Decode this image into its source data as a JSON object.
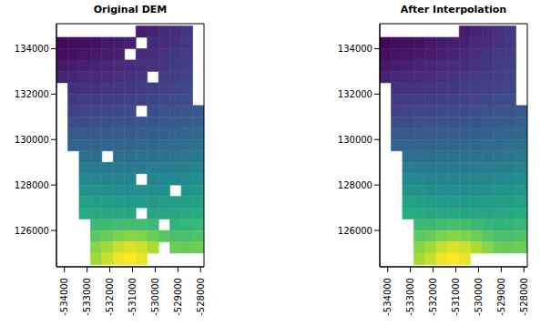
{
  "chart_data": [
    {
      "type": "heatmap",
      "title": "Original DEM",
      "x": [
        -534100,
        -533600,
        -533100,
        -532600,
        -532100,
        -531600,
        -531100,
        -530600,
        -530100,
        -529600,
        -529100,
        -528600,
        -528100
      ],
      "y": [
        134750,
        134250,
        133750,
        133250,
        132750,
        132250,
        131750,
        131250,
        130750,
        130250,
        129750,
        129250,
        128750,
        128250,
        127750,
        127250,
        126750,
        126250,
        125750,
        125250,
        124750
      ],
      "z": [
        [
          null,
          null,
          null,
          null,
          null,
          null,
          null,
          0.08,
          0.1,
          0.12,
          0.14,
          0.16,
          null
        ],
        [
          0.02,
          0.03,
          0.04,
          0.05,
          0.07,
          0.08,
          0.09,
          null,
          0.12,
          0.13,
          0.15,
          0.17,
          null
        ],
        [
          0.04,
          0.05,
          0.06,
          0.07,
          0.08,
          0.09,
          null,
          0.12,
          0.13,
          0.15,
          0.17,
          0.18,
          null
        ],
        [
          0.07,
          0.08,
          0.09,
          0.1,
          0.11,
          0.12,
          0.13,
          0.14,
          0.15,
          0.16,
          0.18,
          0.19,
          null
        ],
        [
          0.1,
          0.11,
          0.12,
          0.12,
          0.13,
          0.14,
          0.15,
          0.16,
          null,
          0.18,
          0.19,
          0.2,
          null
        ],
        [
          null,
          0.14,
          0.15,
          0.15,
          0.16,
          0.17,
          0.17,
          0.18,
          0.19,
          0.2,
          0.21,
          0.22,
          null
        ],
        [
          null,
          0.17,
          0.18,
          0.18,
          0.19,
          0.19,
          0.2,
          0.2,
          0.21,
          0.22,
          0.23,
          0.24,
          null
        ],
        [
          null,
          0.2,
          0.21,
          0.21,
          0.22,
          0.22,
          0.23,
          null,
          0.24,
          0.25,
          0.26,
          0.27,
          0.28
        ],
        [
          null,
          0.24,
          0.24,
          0.25,
          0.25,
          0.26,
          0.26,
          0.27,
          0.27,
          0.28,
          0.29,
          0.3,
          0.31
        ],
        [
          null,
          0.28,
          0.28,
          0.29,
          0.29,
          0.29,
          0.3,
          0.3,
          0.31,
          0.31,
          0.32,
          0.33,
          0.34
        ],
        [
          null,
          0.32,
          0.32,
          0.32,
          0.33,
          0.33,
          0.33,
          0.34,
          0.34,
          0.35,
          0.35,
          0.36,
          0.37
        ],
        [
          null,
          null,
          0.37,
          0.36,
          null,
          0.37,
          0.37,
          0.38,
          0.38,
          0.38,
          0.39,
          0.4,
          0.41
        ],
        [
          null,
          null,
          0.42,
          0.41,
          0.41,
          0.41,
          0.41,
          0.41,
          0.42,
          0.42,
          0.43,
          0.44,
          0.45
        ],
        [
          null,
          null,
          0.47,
          0.46,
          0.45,
          0.45,
          0.45,
          null,
          0.46,
          0.46,
          0.47,
          0.48,
          0.49
        ],
        [
          null,
          null,
          0.52,
          0.51,
          0.5,
          0.49,
          0.49,
          0.49,
          0.5,
          0.5,
          null,
          0.52,
          0.53
        ],
        [
          null,
          null,
          0.57,
          0.56,
          0.55,
          0.54,
          0.54,
          0.54,
          0.54,
          0.55,
          0.56,
          0.56,
          0.57
        ],
        [
          null,
          null,
          0.62,
          0.61,
          0.6,
          0.6,
          0.6,
          null,
          0.59,
          0.59,
          0.6,
          0.61,
          0.62
        ],
        [
          null,
          null,
          null,
          0.68,
          0.68,
          0.69,
          0.7,
          0.69,
          0.68,
          null,
          0.65,
          0.66,
          0.67
        ],
        [
          null,
          null,
          null,
          0.75,
          0.77,
          0.8,
          0.82,
          0.81,
          0.78,
          0.74,
          0.71,
          0.71,
          0.72
        ],
        [
          null,
          null,
          null,
          0.82,
          0.86,
          0.92,
          0.95,
          0.93,
          0.88,
          null,
          0.78,
          0.77,
          0.78
        ],
        [
          null,
          null,
          null,
          0.86,
          0.92,
          0.98,
          1.0,
          0.97,
          null,
          null,
          null,
          null,
          null
        ]
      ],
      "zlim": [
        0,
        1
      ],
      "xlim": [
        -534350,
        -527850
      ],
      "ylim": [
        124400,
        135100
      ],
      "xticks": [
        -534000,
        -533000,
        -532000,
        -531000,
        -530000,
        -529000,
        -528000
      ],
      "yticks": [
        126000,
        128000,
        130000,
        132000,
        134000
      ]
    },
    {
      "type": "heatmap",
      "title": "After Interpolation",
      "x": [
        -534100,
        -533600,
        -533100,
        -532600,
        -532100,
        -531600,
        -531100,
        -530600,
        -530100,
        -529600,
        -529100,
        -528600,
        -528100
      ],
      "y": [
        134750,
        134250,
        133750,
        133250,
        132750,
        132250,
        131750,
        131250,
        130750,
        130250,
        129750,
        129250,
        128750,
        128250,
        127750,
        127250,
        126750,
        126250,
        125750,
        125250,
        124750
      ],
      "z": [
        [
          null,
          null,
          null,
          null,
          null,
          null,
          null,
          0.08,
          0.1,
          0.12,
          0.14,
          0.16,
          null
        ],
        [
          0.02,
          0.03,
          0.04,
          0.05,
          0.07,
          0.08,
          0.09,
          0.1,
          0.12,
          0.13,
          0.15,
          0.17,
          null
        ],
        [
          0.04,
          0.05,
          0.06,
          0.07,
          0.08,
          0.09,
          0.1,
          0.12,
          0.13,
          0.15,
          0.17,
          0.18,
          null
        ],
        [
          0.07,
          0.08,
          0.09,
          0.1,
          0.11,
          0.12,
          0.13,
          0.14,
          0.15,
          0.16,
          0.18,
          0.19,
          null
        ],
        [
          0.1,
          0.11,
          0.12,
          0.12,
          0.13,
          0.14,
          0.15,
          0.16,
          0.17,
          0.18,
          0.19,
          0.2,
          null
        ],
        [
          null,
          0.14,
          0.15,
          0.15,
          0.16,
          0.17,
          0.17,
          0.18,
          0.19,
          0.2,
          0.21,
          0.22,
          null
        ],
        [
          null,
          0.17,
          0.18,
          0.18,
          0.19,
          0.19,
          0.2,
          0.2,
          0.21,
          0.22,
          0.23,
          0.24,
          null
        ],
        [
          null,
          0.2,
          0.21,
          0.21,
          0.22,
          0.22,
          0.23,
          0.23,
          0.24,
          0.25,
          0.26,
          0.27,
          0.28
        ],
        [
          null,
          0.24,
          0.24,
          0.25,
          0.25,
          0.26,
          0.26,
          0.27,
          0.27,
          0.28,
          0.29,
          0.3,
          0.31
        ],
        [
          null,
          0.28,
          0.28,
          0.29,
          0.29,
          0.29,
          0.3,
          0.3,
          0.31,
          0.31,
          0.32,
          0.33,
          0.34
        ],
        [
          null,
          0.32,
          0.32,
          0.32,
          0.33,
          0.33,
          0.33,
          0.34,
          0.34,
          0.35,
          0.35,
          0.36,
          0.37
        ],
        [
          null,
          null,
          0.37,
          0.36,
          0.37,
          0.37,
          0.37,
          0.38,
          0.38,
          0.38,
          0.39,
          0.4,
          0.41
        ],
        [
          null,
          null,
          0.42,
          0.41,
          0.41,
          0.41,
          0.41,
          0.41,
          0.42,
          0.42,
          0.43,
          0.44,
          0.45
        ],
        [
          null,
          null,
          0.47,
          0.46,
          0.45,
          0.45,
          0.45,
          0.45,
          0.46,
          0.46,
          0.47,
          0.48,
          0.49
        ],
        [
          null,
          null,
          0.52,
          0.51,
          0.5,
          0.49,
          0.49,
          0.49,
          0.5,
          0.5,
          0.51,
          0.52,
          0.53
        ],
        [
          null,
          null,
          0.57,
          0.56,
          0.55,
          0.54,
          0.54,
          0.54,
          0.54,
          0.55,
          0.56,
          0.56,
          0.57
        ],
        [
          null,
          null,
          0.62,
          0.61,
          0.6,
          0.6,
          0.6,
          0.6,
          0.59,
          0.59,
          0.6,
          0.61,
          0.62
        ],
        [
          null,
          null,
          null,
          0.68,
          0.68,
          0.69,
          0.7,
          0.69,
          0.68,
          0.66,
          0.65,
          0.66,
          0.67
        ],
        [
          null,
          null,
          null,
          0.75,
          0.77,
          0.8,
          0.82,
          0.81,
          0.78,
          0.74,
          0.71,
          0.71,
          0.72
        ],
        [
          null,
          null,
          null,
          0.82,
          0.86,
          0.92,
          0.95,
          0.93,
          0.88,
          0.82,
          0.78,
          0.77,
          0.78
        ],
        [
          null,
          null,
          null,
          0.86,
          0.92,
          0.98,
          1.0,
          0.97,
          null,
          null,
          null,
          null,
          null
        ]
      ],
      "zlim": [
        0,
        1
      ],
      "xlim": [
        -534350,
        -527850
      ],
      "ylim": [
        124400,
        135100
      ],
      "xticks": [
        -534000,
        -533000,
        -532000,
        -531000,
        -530000,
        -529000,
        -528000
      ],
      "yticks": [
        126000,
        128000,
        130000,
        132000,
        134000
      ]
    }
  ]
}
